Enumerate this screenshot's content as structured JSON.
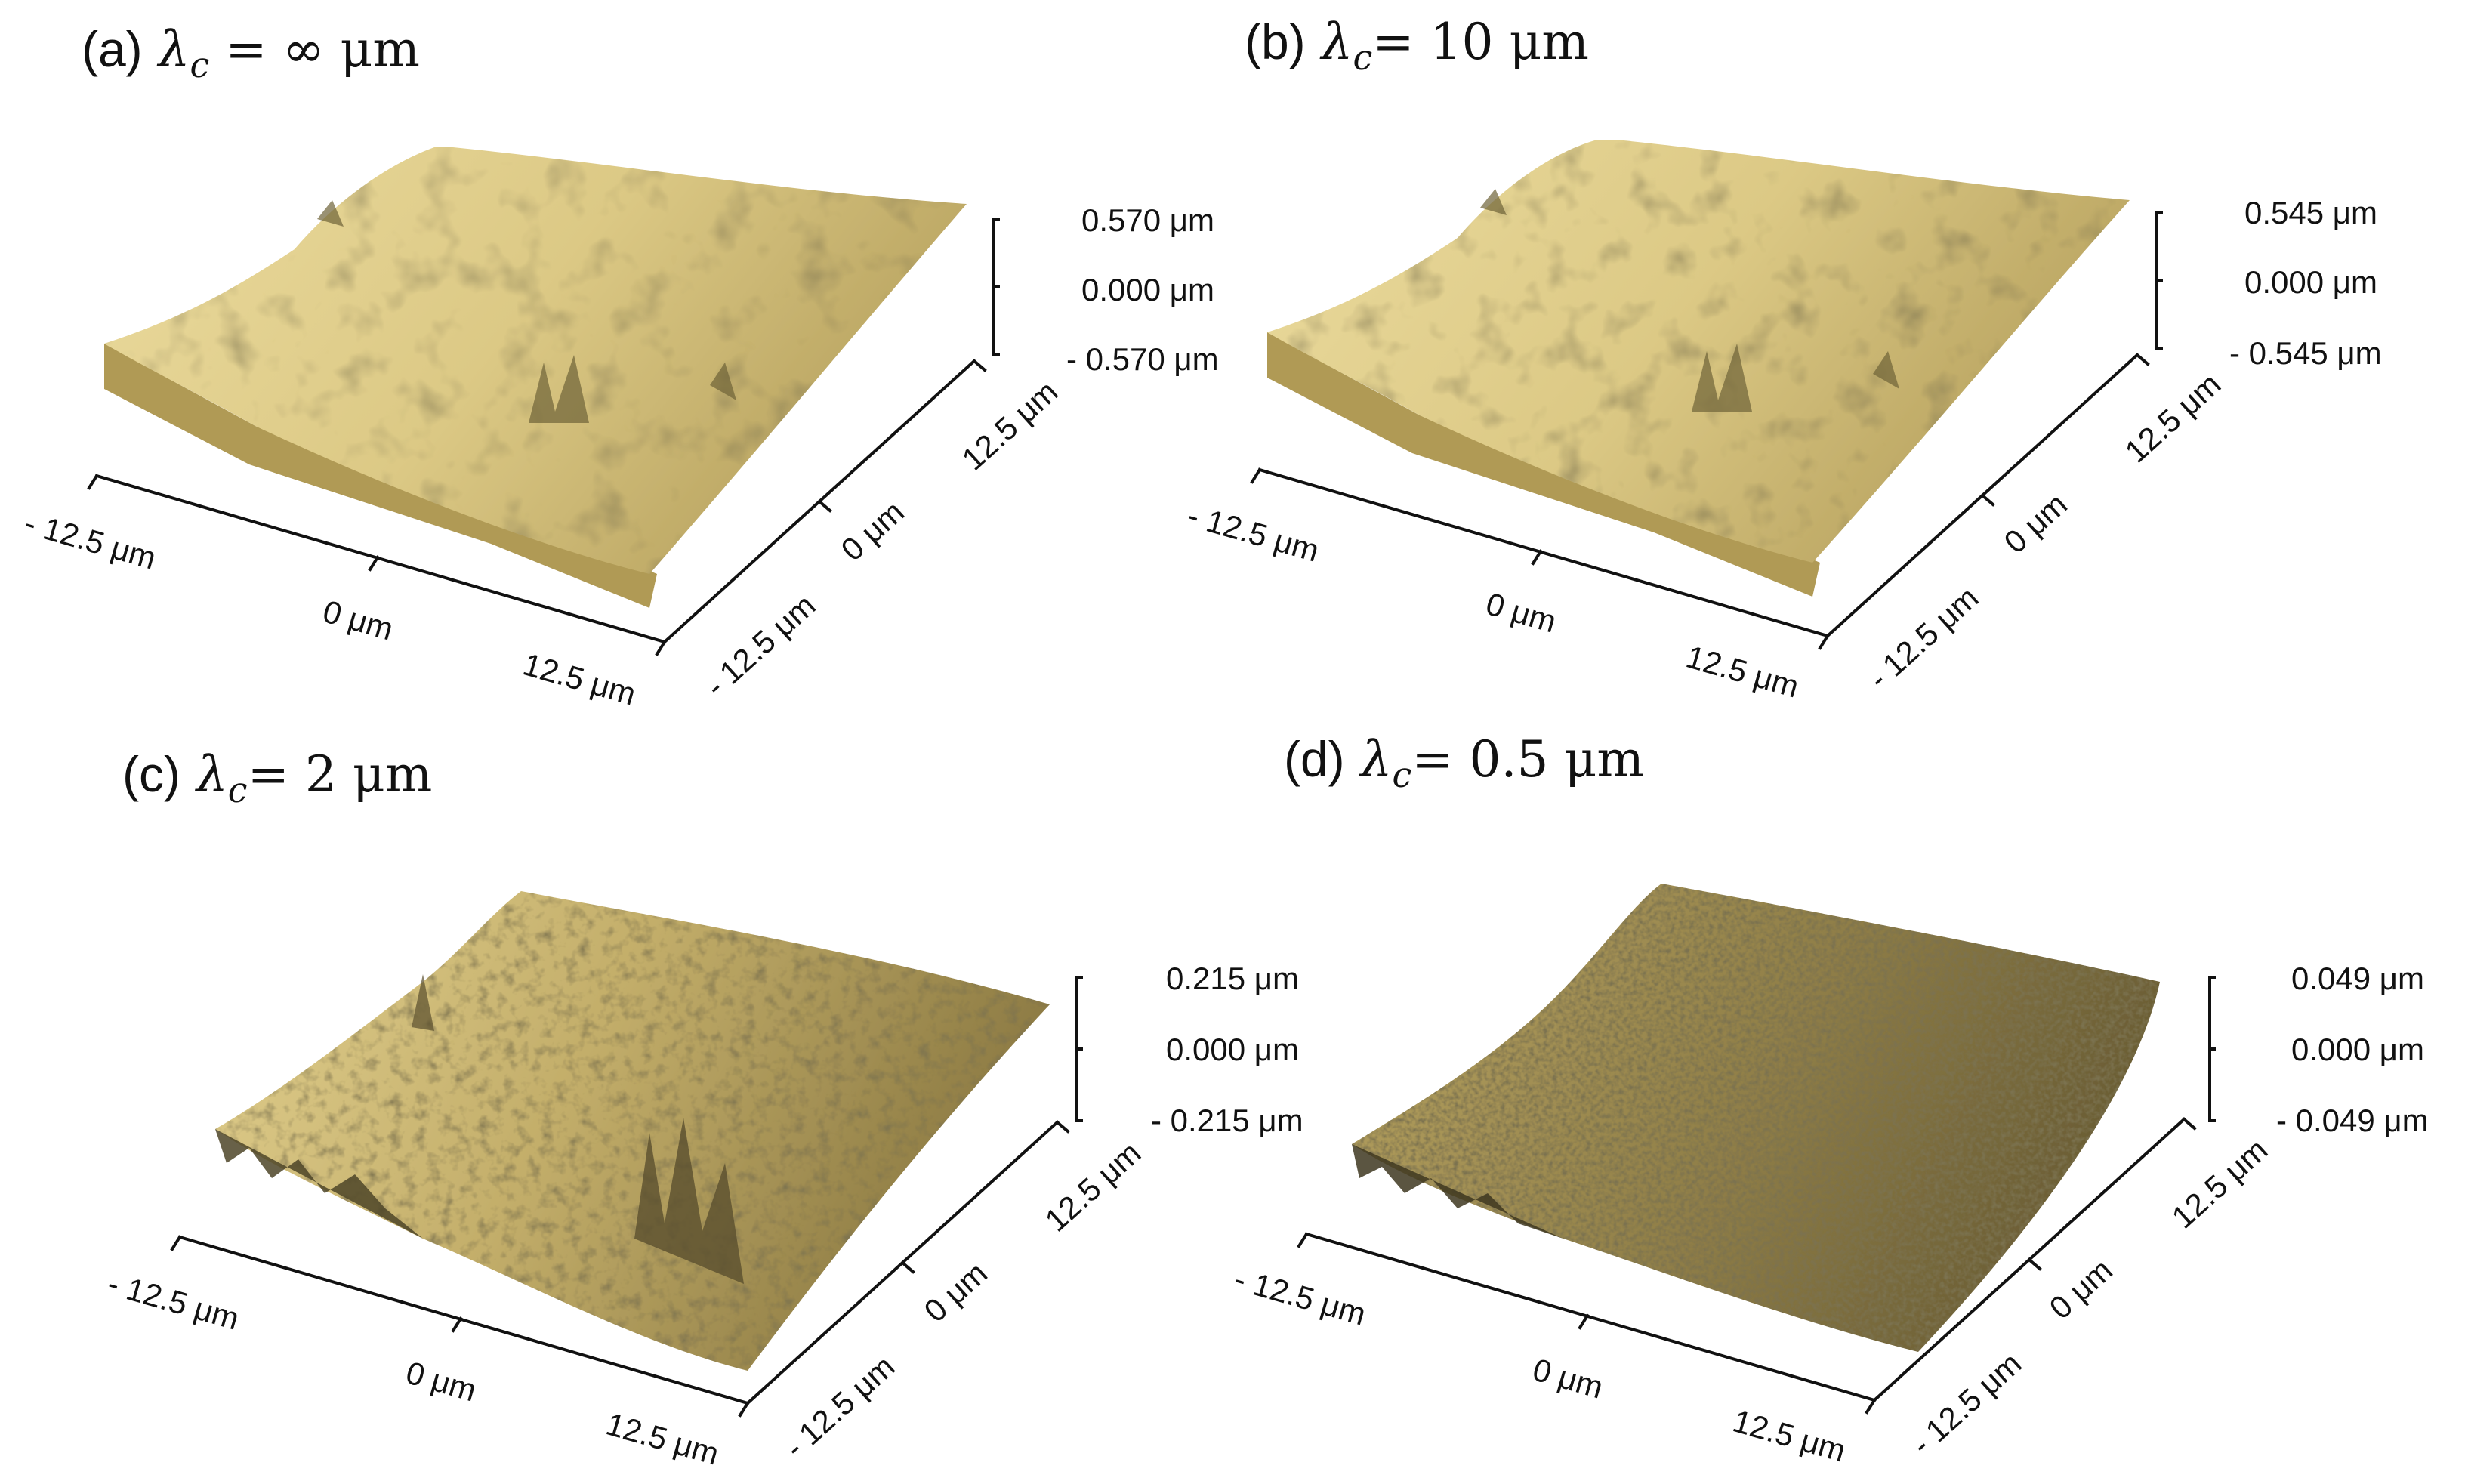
{
  "figure": {
    "panels": [
      {
        "id": "a",
        "prefix": "(a)",
        "lambda_symbol": "λ",
        "subscript": "c",
        "value_text": " = ∞ μm",
        "z_labels": {
          "top": "0.570 μm",
          "mid": "0.000 μm",
          "bottom": "- 0.570 μm"
        },
        "x_labels": {
          "start": "- 12.5 μm",
          "mid": "0 μm",
          "end": "12.5 μm"
        },
        "y_labels": {
          "start": "- 12.5 μm",
          "mid": "0 μm",
          "end": "12.5 μm"
        }
      },
      {
        "id": "b",
        "prefix": "(b)",
        "lambda_symbol": "λ",
        "subscript": "c",
        "value_text": "= 10 μm",
        "z_labels": {
          "top": "0.545 μm",
          "mid": "0.000 μm",
          "bottom": "- 0.545 μm"
        },
        "x_labels": {
          "start": "- 12.5 μm",
          "mid": "0 μm",
          "end": "12.5 μm"
        },
        "y_labels": {
          "start": "- 12.5 μm",
          "mid": "0 μm",
          "end": "12.5 μm"
        }
      },
      {
        "id": "c",
        "prefix": "(c)",
        "lambda_symbol": "λ",
        "subscript": "c",
        "value_text": "= 2 μm",
        "z_labels": {
          "top": "0.215 μm",
          "mid": "0.000 μm",
          "bottom": "- 0.215 μm"
        },
        "x_labels": {
          "start": "- 12.5 μm",
          "mid": "0 μm",
          "end": "12.5 μm"
        },
        "y_labels": {
          "start": "- 12.5 μm",
          "mid": "0 μm",
          "end": "12.5 μm"
        }
      },
      {
        "id": "d",
        "prefix": "(d)",
        "lambda_symbol": "λ",
        "subscript": "c",
        "value_text": "= 0.5 μm",
        "z_labels": {
          "top": "0.049 μm",
          "mid": "0.000 μm",
          "bottom": "- 0.049 μm"
        },
        "x_labels": {
          "start": "- 12.5 μm",
          "mid": "0 μm",
          "end": "12.5 μm"
        },
        "y_labels": {
          "start": "- 12.5 μm",
          "mid": "0 μm",
          "end": "12.5 μm"
        }
      }
    ],
    "colors": {
      "surface_light": "#E9D99A",
      "surface_mid": "#C8B46E",
      "surface_dark": "#5E5330",
      "surface_side": "#B09A55",
      "axis": "#111111"
    }
  }
}
